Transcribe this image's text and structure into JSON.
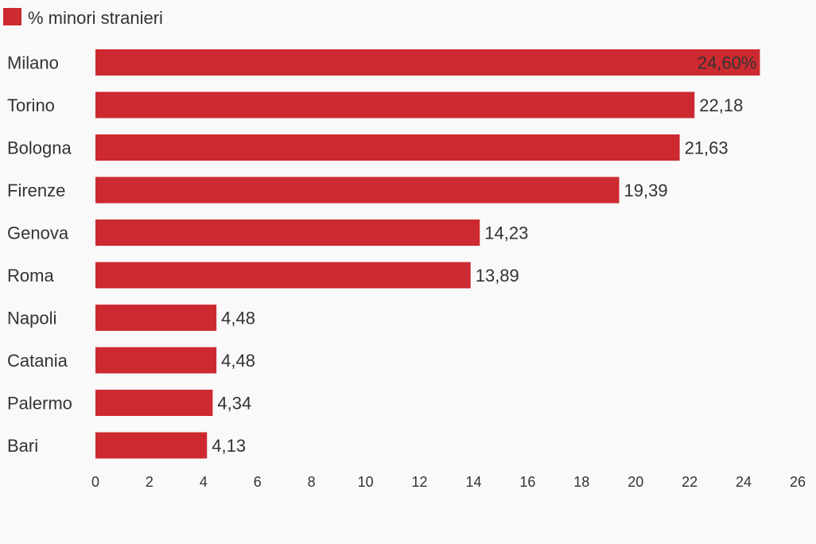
{
  "chart_data": {
    "type": "bar",
    "orientation": "horizontal",
    "categories": [
      "Milano",
      "Torino",
      "Bologna",
      "Firenze",
      "Genova",
      "Roma",
      "Napoli",
      "Catania",
      "Palermo",
      "Bari"
    ],
    "series": [
      {
        "name": "% minori stranieri",
        "color": "#cc2a30",
        "values": [
          24.6,
          22.18,
          21.63,
          19.39,
          14.23,
          13.89,
          4.48,
          4.48,
          4.34,
          4.13
        ],
        "value_labels": [
          "24,60%",
          "22,18",
          "21,63",
          "19,39",
          "14,23",
          "13,89",
          "4,48",
          "4,48",
          "4,34",
          "4,13"
        ]
      }
    ],
    "xlim": [
      0,
      26
    ],
    "x_ticks": [
      0,
      2,
      4,
      6,
      8,
      10,
      12,
      14,
      16,
      18,
      20,
      22,
      24,
      26
    ],
    "grid": false,
    "legend": "top-left"
  }
}
